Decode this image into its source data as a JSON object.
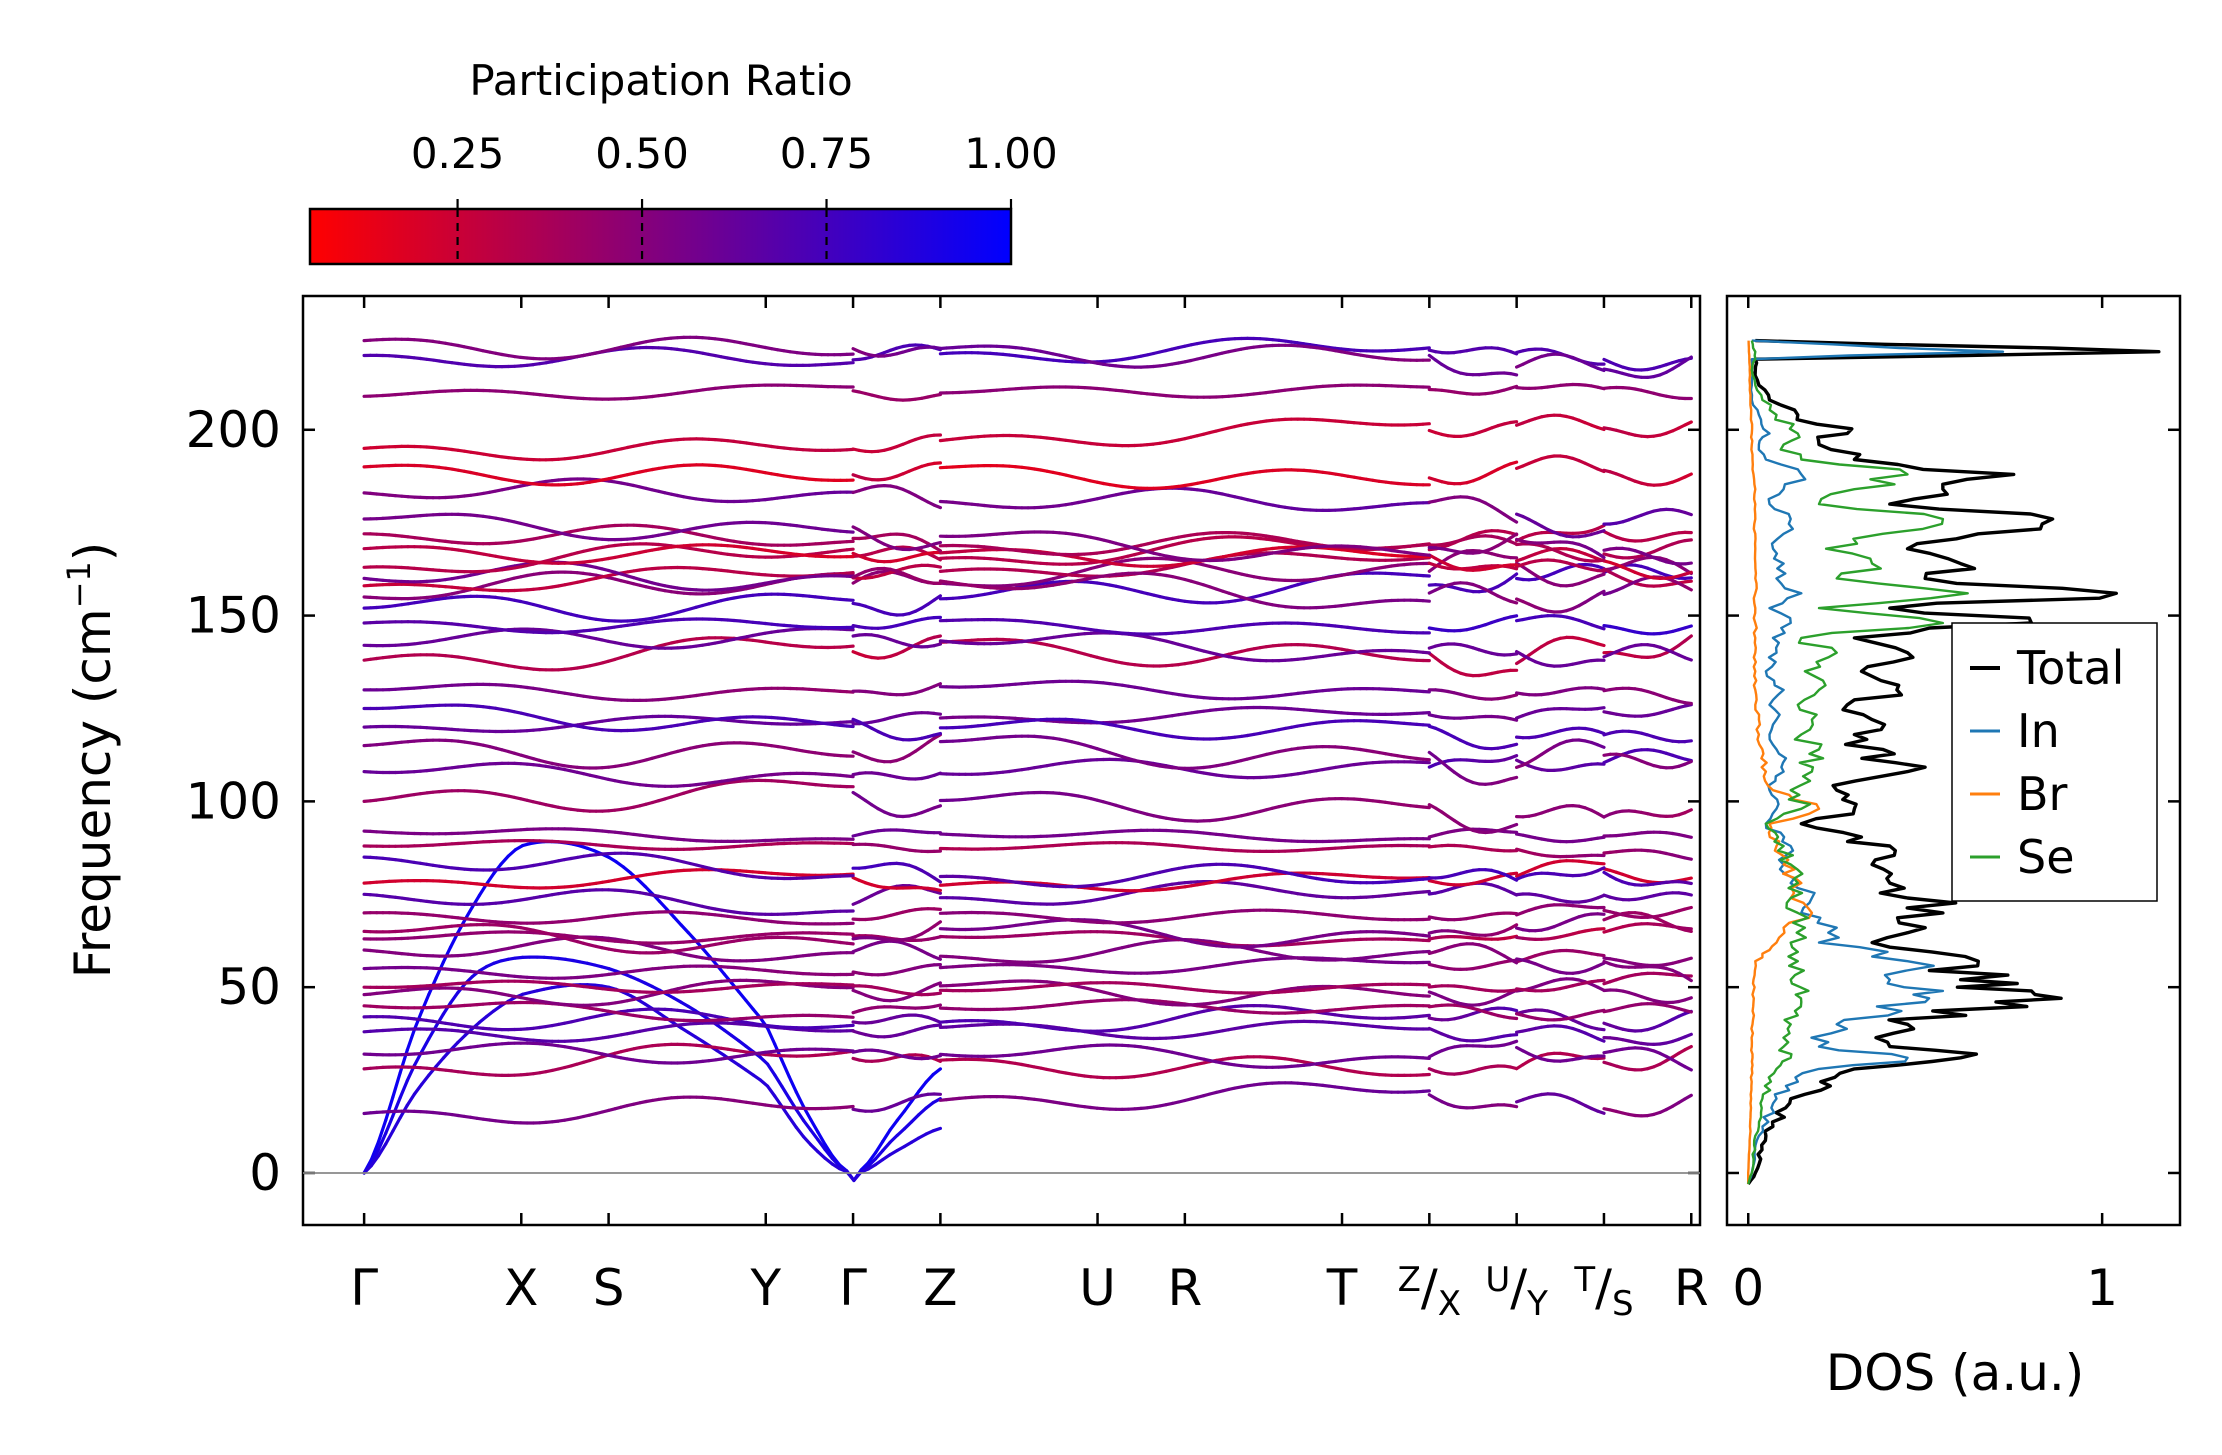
{
  "colors": {
    "ratio_low": "#ff0000",
    "ratio_high": "#0000ff",
    "total": "#000000",
    "In": "#1f77b4",
    "Br": "#ff7f0e",
    "Se": "#2ca02c",
    "zero_line": "#888888"
  },
  "colorbar": {
    "title": "Participation Ratio",
    "min": 0.05,
    "max": 1.0,
    "ticks": [
      0.25,
      0.5,
      0.75,
      1.0
    ],
    "tick_labels": [
      "0.25",
      "0.50",
      "0.75",
      "1.00"
    ]
  },
  "chart_data": [
    {
      "type": "line",
      "name": "phonon-band-structure",
      "ylabel": "Frequency (cm",
      "ylabel_sup": "−1",
      "ylabel_end": ")",
      "ylim": [
        -14,
        236
      ],
      "yticks": [
        0,
        50,
        100,
        150,
        200
      ],
      "xlim": [
        -0.35,
        7.65
      ],
      "kpoints": [
        {
          "pos": 0.0,
          "label": "Γ"
        },
        {
          "pos": 0.9,
          "label": "X"
        },
        {
          "pos": 1.4,
          "label": "S"
        },
        {
          "pos": 2.3,
          "label": "Y"
        },
        {
          "pos": 2.8,
          "label": "Γ"
        },
        {
          "pos": 3.3,
          "label": "Z"
        },
        {
          "pos": 4.2,
          "label": "U"
        },
        {
          "pos": 4.7,
          "label": "R"
        },
        {
          "pos": 5.6,
          "label": "T"
        },
        {
          "pos": 6.1,
          "label": "Z",
          "sub": "X"
        },
        {
          "pos": 6.6,
          "label": "U",
          "sub": "Y"
        },
        {
          "pos": 7.1,
          "label": "T",
          "sub": "S"
        },
        {
          "pos": 7.6,
          "label": "R"
        }
      ],
      "segments": [
        [
          0.0,
          2.8
        ],
        [
          2.8,
          3.3
        ],
        [
          3.3,
          6.1
        ],
        [
          6.1,
          6.6
        ],
        [
          6.6,
          7.1
        ],
        [
          7.1,
          7.6
        ]
      ],
      "acoustic_bands": [
        {
          "x": [
            0,
            0.3,
            0.6,
            0.9,
            1.4,
            1.85,
            2.3,
            2.55,
            2.8,
            3.05,
            3.3
          ],
          "y": [
            0,
            40,
            70,
            88,
            85,
            65,
            40,
            15,
            0,
            14,
            28
          ]
        },
        {
          "x": [
            0,
            0.3,
            0.6,
            0.9,
            1.4,
            1.85,
            2.3,
            2.55,
            2.8,
            3.05,
            3.3
          ],
          "y": [
            0,
            30,
            52,
            58,
            55,
            45,
            30,
            12,
            0,
            10,
            20
          ]
        },
        {
          "x": [
            0,
            0.3,
            0.6,
            0.9,
            1.4,
            1.85,
            2.3,
            2.55,
            2.8,
            3.05,
            3.3
          ],
          "y": [
            0,
            22,
            38,
            48,
            50,
            38,
            24,
            8,
            0,
            6,
            12
          ]
        }
      ],
      "optical_bands_start_cm1": [
        16,
        28,
        32,
        38,
        42,
        45,
        48,
        50,
        55,
        60,
        63,
        65,
        70,
        75,
        78,
        85,
        88,
        92,
        100,
        108,
        115,
        120,
        125,
        130,
        138,
        142,
        148,
        152,
        155,
        158,
        160,
        163,
        168,
        172,
        176,
        183,
        190,
        195,
        209,
        220,
        224
      ]
    },
    {
      "type": "line",
      "name": "phonon-dos",
      "xlabel": "DOS (a.u.)",
      "xlim": [
        -0.06,
        1.22
      ],
      "xticks": [
        0,
        1
      ],
      "ylim": [
        -14,
        236
      ],
      "legend_position": "center-right",
      "series": [
        {
          "name": "Total",
          "y": [
            -3,
            0,
            10,
            20,
            28,
            31,
            34,
            40,
            46,
            49,
            52,
            57,
            62,
            66,
            70,
            74,
            78,
            83,
            88,
            94,
            98,
            103,
            108,
            114,
            118,
            122,
            126,
            130,
            135,
            140,
            144,
            148,
            152,
            156,
            160,
            164,
            168,
            172,
            176,
            180,
            184,
            188,
            192,
            196,
            199,
            204,
            208,
            212,
            216,
            219,
            221,
            224
          ],
          "x": [
            0,
            0.02,
            0.05,
            0.12,
            0.3,
            0.6,
            0.4,
            0.45,
            0.7,
            0.8,
            0.6,
            0.65,
            0.35,
            0.5,
            0.55,
            0.45,
            0.4,
            0.35,
            0.4,
            0.15,
            0.3,
            0.25,
            0.45,
            0.38,
            0.3,
            0.35,
            0.28,
            0.42,
            0.32,
            0.45,
            0.3,
            0.8,
            0.4,
            1.04,
            0.5,
            0.6,
            0.45,
            0.65,
            0.86,
            0.4,
            0.55,
            0.75,
            0.3,
            0.2,
            0.28,
            0.14,
            0.06,
            0.03,
            0.02,
            0.02,
            1.16,
            0.02
          ]
        },
        {
          "name": "In",
          "y": [
            -3,
            0,
            10,
            20,
            28,
            31,
            34,
            40,
            46,
            49,
            52,
            57,
            62,
            66,
            70,
            74,
            78,
            83,
            88,
            94,
            98,
            103,
            108,
            114,
            118,
            122,
            126,
            130,
            135,
            140,
            144,
            148,
            152,
            156,
            160,
            164,
            168,
            172,
            176,
            180,
            184,
            188,
            192,
            196,
            199,
            204,
            208,
            212,
            216,
            219,
            221,
            224
          ],
          "x": [
            0,
            0.01,
            0.03,
            0.08,
            0.2,
            0.45,
            0.2,
            0.25,
            0.5,
            0.55,
            0.4,
            0.45,
            0.2,
            0.25,
            0.15,
            0.18,
            0.12,
            0.1,
            0.12,
            0.05,
            0.08,
            0.06,
            0.1,
            0.08,
            0.06,
            0.08,
            0.06,
            0.1,
            0.05,
            0.08,
            0.07,
            0.12,
            0.06,
            0.15,
            0.08,
            0.1,
            0.07,
            0.1,
            0.12,
            0.06,
            0.1,
            0.15,
            0.05,
            0.03,
            0.06,
            0.03,
            0.01,
            0.01,
            0.01,
            0.01,
            0.72,
            0.01
          ]
        },
        {
          "name": "Br",
          "y": [
            -3,
            0,
            10,
            20,
            28,
            31,
            34,
            40,
            46,
            49,
            52,
            57,
            60,
            62,
            66,
            70,
            74,
            78,
            83,
            88,
            94,
            98,
            103,
            108,
            114,
            118,
            122,
            126,
            130,
            135,
            140,
            144,
            148,
            152,
            156,
            160,
            164,
            168,
            172,
            176,
            180,
            184,
            188,
            192,
            196,
            199,
            204,
            208,
            212,
            216,
            219,
            221,
            224
          ],
          "x": [
            0,
            0.0,
            0.005,
            0.008,
            0.01,
            0.012,
            0.01,
            0.012,
            0.015,
            0.015,
            0.015,
            0.02,
            0.06,
            0.08,
            0.1,
            0.18,
            0.12,
            0.15,
            0.1,
            0.08,
            0.06,
            0.2,
            0.07,
            0.05,
            0.04,
            0.03,
            0.03,
            0.02,
            0.02,
            0.02,
            0.02,
            0.02,
            0.02,
            0.02,
            0.02,
            0.02,
            0.02,
            0.02,
            0.02,
            0.02,
            0.02,
            0.02,
            0.015,
            0.012,
            0.01,
            0.01,
            0.008,
            0.006,
            0.005,
            0.004,
            0.003,
            0.002,
            0.001
          ]
        },
        {
          "name": "Se",
          "y": [
            -3,
            0,
            10,
            20,
            28,
            31,
            34,
            40,
            46,
            49,
            52,
            57,
            62,
            66,
            70,
            74,
            78,
            83,
            88,
            94,
            98,
            103,
            108,
            114,
            118,
            122,
            126,
            130,
            135,
            140,
            144,
            148,
            152,
            156,
            160,
            164,
            168,
            172,
            176,
            180,
            184,
            188,
            192,
            196,
            199,
            204,
            208,
            212,
            216,
            219,
            221,
            224
          ],
          "x": [
            0,
            0.01,
            0.02,
            0.04,
            0.08,
            0.12,
            0.1,
            0.12,
            0.15,
            0.17,
            0.12,
            0.14,
            0.12,
            0.16,
            0.14,
            0.12,
            0.14,
            0.12,
            0.1,
            0.05,
            0.15,
            0.12,
            0.18,
            0.2,
            0.15,
            0.18,
            0.14,
            0.2,
            0.16,
            0.25,
            0.15,
            0.55,
            0.2,
            0.62,
            0.25,
            0.35,
            0.22,
            0.38,
            0.55,
            0.2,
            0.3,
            0.45,
            0.15,
            0.1,
            0.14,
            0.08,
            0.04,
            0.02,
            0.01,
            0.02,
            0.02,
            0.01
          ]
        }
      ]
    }
  ]
}
